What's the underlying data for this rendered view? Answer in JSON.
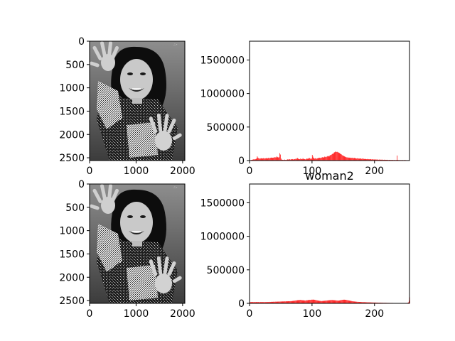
{
  "chart_data": [
    {
      "type": "image",
      "image_label": "",
      "x_range": [
        0,
        2048
      ],
      "y_range": [
        0,
        2560
      ],
      "y_inverted": true,
      "xticks": [
        0,
        1000,
        2000
      ],
      "yticks": [
        0,
        500,
        1000,
        1500,
        2000,
        2500
      ],
      "xtick_labels": [
        "0",
        "1000",
        "2000"
      ],
      "ytick_labels": [
        "0",
        "500",
        "1000",
        "1500",
        "2000",
        "2500"
      ]
    },
    {
      "type": "bar",
      "title": "",
      "bar_color": "#ff0000",
      "xlim": [
        0,
        256
      ],
      "ylim": [
        0,
        1780000
      ],
      "xticks": [
        0,
        100,
        200
      ],
      "yticks": [
        0,
        500000,
        1000000,
        1500000
      ],
      "xtick_labels": [
        "0",
        "100",
        "200"
      ],
      "ytick_labels": [
        "0",
        "500000",
        "1000000",
        "1500000"
      ],
      "values": [
        5000,
        6000,
        8000,
        10000,
        12000,
        15000,
        18000,
        20000,
        16000,
        20000,
        25000,
        30000,
        62000,
        45000,
        35000,
        32000,
        28000,
        30000,
        35000,
        33000,
        30000,
        32000,
        36000,
        34000,
        30000,
        32000,
        38000,
        35000,
        30000,
        36000,
        40000,
        38000,
        35000,
        40000,
        42000,
        45000,
        42000,
        40000,
        44000,
        46000,
        50000,
        48000,
        45000,
        60000,
        55000,
        48000,
        45000,
        50000,
        110000,
        90000,
        30000,
        15000,
        10000,
        12000,
        8000,
        10000,
        15000,
        10000,
        8000,
        12000,
        15000,
        20000,
        12000,
        18000,
        20000,
        15000,
        18000,
        20000,
        22000,
        18000,
        15000,
        20000,
        22000,
        25000,
        20000,
        30000,
        40000,
        30000,
        25000,
        22000,
        20000,
        28000,
        25000,
        22000,
        20000,
        35000,
        25000,
        20000,
        22000,
        18000,
        20000,
        30000,
        28000,
        25000,
        30000,
        40000,
        35000,
        28000,
        25000,
        30000,
        85000,
        60000,
        40000,
        32000,
        28000,
        35000,
        30000,
        28000,
        32000,
        35000,
        38000,
        40000,
        42000,
        38000,
        40000,
        45000,
        50000,
        48000,
        45000,
        50000,
        60000,
        55000,
        50000,
        58000,
        62000,
        70000,
        65000,
        60000,
        75000,
        80000,
        85000,
        90000,
        100000,
        95000,
        110000,
        120000,
        125000,
        130000,
        135000,
        128000,
        130000,
        125000,
        120000,
        115000,
        110000,
        100000,
        95000,
        90000,
        80000,
        75000,
        70000,
        65000,
        60000,
        55000,
        50000,
        48000,
        45000,
        50000,
        42000,
        40000,
        45000,
        40000,
        38000,
        40000,
        42000,
        38000,
        35000,
        40000,
        38000,
        35000,
        32000,
        30000,
        35000,
        32000,
        30000,
        28000,
        30000,
        32000,
        28000,
        25000,
        28000,
        30000,
        26000,
        24000,
        22000,
        25000,
        22000,
        20000,
        22000,
        24000,
        20000,
        18000,
        20000,
        22000,
        18000,
        16000,
        18000,
        20000,
        16000,
        15000,
        18000,
        16000,
        14000,
        15000,
        16000,
        14000,
        12000,
        14000,
        15000,
        13000,
        12000,
        13000,
        14000,
        12000,
        11000,
        12000,
        13000,
        11000,
        10000,
        11000,
        12000,
        10000,
        9000,
        10000,
        11000,
        9000,
        8000,
        9000,
        10000,
        9000,
        8000,
        9000,
        8000,
        7000,
        8000,
        9000,
        75000,
        10000,
        8000,
        7000,
        8000,
        7000,
        6000,
        7000,
        8000,
        7000,
        6000,
        7000,
        8000,
        7000,
        6000,
        5000,
        6000,
        5000,
        6000,
        5000
      ]
    },
    {
      "type": "image",
      "image_label": "",
      "x_range": [
        0,
        2048
      ],
      "y_range": [
        0,
        2560
      ],
      "y_inverted": true,
      "xticks": [
        0,
        1000,
        2000
      ],
      "yticks": [
        0,
        500,
        1000,
        1500,
        2000,
        2500
      ],
      "xtick_labels": [
        "0",
        "1000",
        "2000"
      ],
      "ytick_labels": [
        "0",
        "500",
        "1000",
        "1500",
        "2000",
        "2500"
      ]
    },
    {
      "type": "bar",
      "title": "woman2",
      "bar_color": "#ff0000",
      "xlim": [
        0,
        256
      ],
      "ylim": [
        0,
        1780000
      ],
      "xticks": [
        0,
        100,
        200
      ],
      "yticks": [
        0,
        500000,
        1000000,
        1500000
      ],
      "xtick_labels": [
        "0",
        "100",
        "200"
      ],
      "ytick_labels": [
        "0",
        "500000",
        "1000000",
        "1500000"
      ],
      "values": [
        20000,
        18000,
        20000,
        18000,
        19000,
        20000,
        18000,
        19000,
        20000,
        18000,
        19000,
        20000,
        18000,
        19000,
        20000,
        18000,
        19000,
        20000,
        18000,
        19000,
        20000,
        18000,
        19000,
        20000,
        18000,
        19000,
        20000,
        18000,
        19000,
        20000,
        20000,
        21000,
        22000,
        21000,
        22000,
        23000,
        22000,
        23000,
        24000,
        23000,
        24000,
        25000,
        24000,
        25000,
        26000,
        25000,
        26000,
        27000,
        26000,
        27000,
        28000,
        27000,
        28000,
        29000,
        28000,
        29000,
        30000,
        29000,
        30000,
        31000,
        30000,
        31000,
        32000,
        31000,
        32000,
        33000,
        32000,
        34000,
        36000,
        35000,
        38000,
        40000,
        39000,
        42000,
        44000,
        43000,
        46000,
        48000,
        47000,
        50000,
        49000,
        52000,
        50000,
        48000,
        46000,
        47000,
        45000,
        44000,
        43000,
        42000,
        44000,
        46000,
        45000,
        48000,
        50000,
        49000,
        52000,
        51000,
        53000,
        55000,
        54000,
        56000,
        55000,
        54000,
        53000,
        50000,
        48000,
        46000,
        44000,
        42000,
        40000,
        38000,
        37000,
        36000,
        35000,
        34000,
        35000,
        36000,
        37000,
        38000,
        39000,
        40000,
        41000,
        42000,
        43000,
        44000,
        45000,
        46000,
        47000,
        48000,
        49000,
        50000,
        50000,
        49000,
        48000,
        47000,
        46000,
        45000,
        44000,
        43000,
        42000,
        41000,
        40000,
        42000,
        44000,
        46000,
        48000,
        50000,
        52000,
        53000,
        54000,
        55000,
        54000,
        53000,
        52000,
        50000,
        48000,
        46000,
        44000,
        42000,
        40000,
        38000,
        36000,
        34000,
        32000,
        30000,
        29000,
        28000,
        27000,
        26000,
        25000,
        24000,
        23000,
        22000,
        22000,
        21000,
        21000,
        20000,
        20000,
        19000,
        19000,
        18000,
        18000,
        18000,
        17000,
        17000,
        16000,
        16000,
        16000,
        15000,
        15000,
        15000,
        14000,
        14000,
        14000,
        13000,
        13000,
        13000,
        12000,
        12000,
        12000,
        12000,
        11000,
        11000,
        11000,
        11000,
        10000,
        10000,
        10000,
        10000,
        9000,
        9000,
        9000,
        9000,
        8000,
        8000,
        8000,
        8000,
        8000,
        7000,
        7000,
        7000,
        7000,
        7000,
        6000,
        6000,
        6000,
        6000,
        6000,
        6000,
        5000,
        5000,
        5000,
        5000,
        5000,
        5000,
        5000,
        5000,
        4000,
        4000,
        4000,
        4000,
        4000,
        4000,
        4000,
        4000,
        4000,
        4000,
        4000,
        4000,
        5000,
        5000,
        6000,
        8000,
        15000,
        40000,
        90000
      ]
    }
  ]
}
